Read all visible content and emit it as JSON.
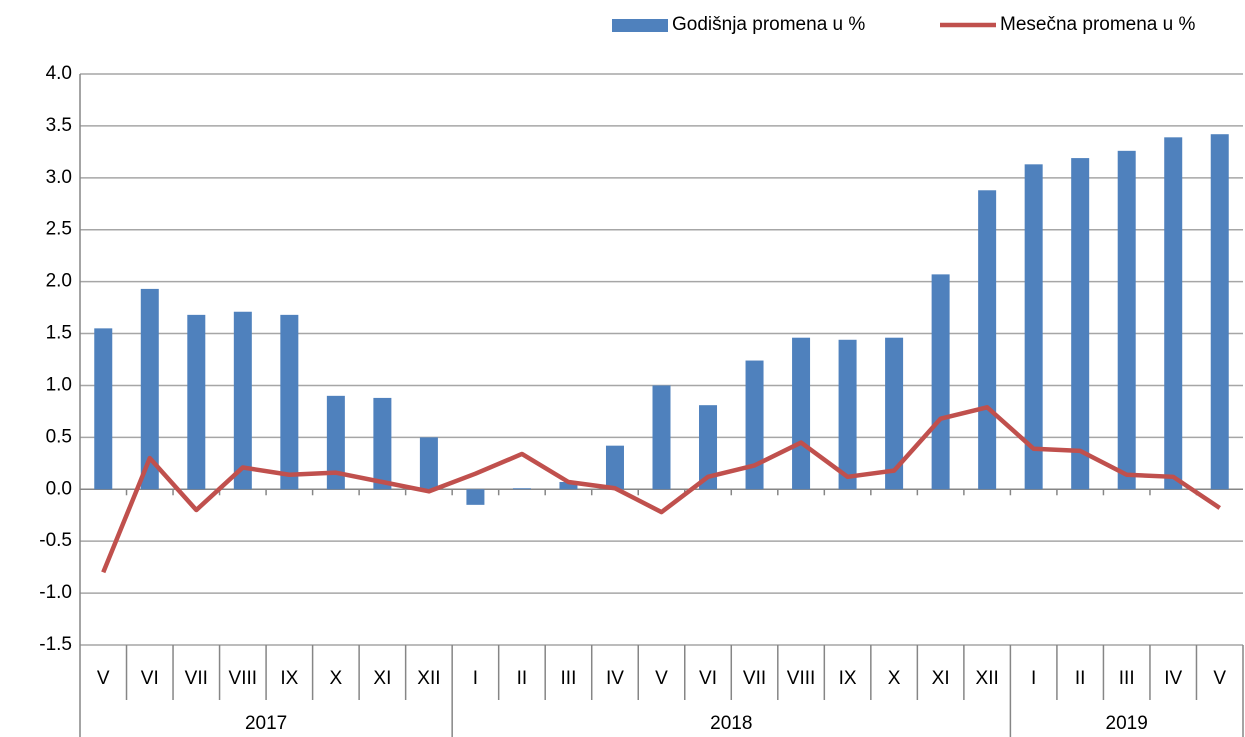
{
  "chart_data": {
    "type": "bar_line",
    "groups": [
      {
        "label": "2017",
        "months": [
          "V",
          "VI",
          "VII",
          "VIII",
          "IX",
          "X",
          "XI",
          "XII"
        ]
      },
      {
        "label": "2018",
        "months": [
          "I",
          "II",
          "III",
          "IV",
          "V",
          "VI",
          "VII",
          "VIII",
          "IX",
          "X",
          "XI",
          "XII"
        ]
      },
      {
        "label": "2019",
        "months": [
          "I",
          "II",
          "III",
          "IV",
          "V"
        ]
      }
    ],
    "series": [
      {
        "name": "Godišnja promena u %",
        "type": "bar",
        "color": "#4f81bd",
        "values": [
          1.55,
          1.93,
          1.68,
          1.71,
          1.68,
          0.9,
          0.88,
          0.5,
          -0.15,
          0.01,
          0.07,
          0.42,
          1.0,
          0.81,
          1.24,
          1.46,
          1.44,
          1.46,
          2.07,
          2.88,
          3.13,
          3.19,
          3.26,
          3.39,
          3.42
        ]
      },
      {
        "name": "Mesečna promena u %",
        "type": "line",
        "color": "#c0504d",
        "values": [
          -0.8,
          0.3,
          -0.2,
          0.21,
          0.14,
          0.16,
          0.07,
          -0.02,
          0.15,
          0.34,
          0.07,
          0.01,
          -0.22,
          0.12,
          0.23,
          0.45,
          0.12,
          0.18,
          0.68,
          0.79,
          0.39,
          0.37,
          0.14,
          0.12,
          -0.18
        ]
      }
    ],
    "ylim": [
      -1.5,
      4.0
    ],
    "yticks": [
      -1.5,
      {
        "value": -1,
        "label": "-1.0"
      },
      -0.5,
      {
        "value": 0,
        "label": "0.0"
      },
      0.5,
      {
        "value": 1,
        "label": "1.0"
      },
      1.5,
      {
        "value": 2,
        "label": "2.0"
      },
      2.5,
      {
        "value": 3,
        "label": "3.0"
      },
      3.5,
      {
        "value": 4,
        "label": "4.0"
      }
    ],
    "grid": true,
    "legend": "top-right"
  }
}
